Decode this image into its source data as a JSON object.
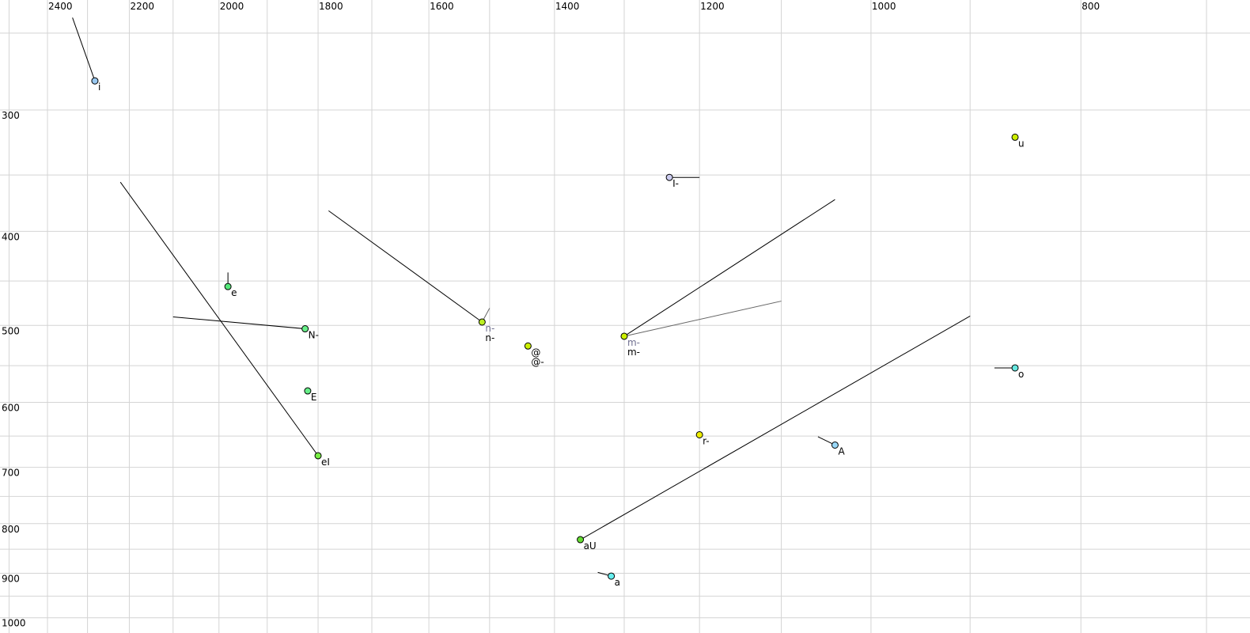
{
  "chart_data": {
    "type": "scatter",
    "title": "",
    "xlabel": "",
    "ylabel": "",
    "x_axis": {
      "quantity": "F2",
      "scale": "log",
      "reversed": true,
      "range": [
        2520,
        650
      ],
      "ticks": [
        2400,
        2200,
        2000,
        1800,
        1600,
        1400,
        1200,
        1000,
        800
      ],
      "grid_step": 100
    },
    "y_axis": {
      "quantity": "F1",
      "scale": "log",
      "reversed": false,
      "range": [
        230,
        1020
      ],
      "ticks": [
        300,
        400,
        500,
        600,
        700,
        800,
        900,
        1000
      ],
      "grid_step": 50
    },
    "grid": true,
    "points": [
      {
        "labels": [
          {
            "text": "i",
            "color": "#000000"
          }
        ],
        "f2": 2282,
        "f1": 280,
        "color": "#99c8f0",
        "trajectory": [
          {
            "f2": 2337,
            "f1": 241,
            "color": "#000000"
          }
        ]
      },
      {
        "labels": [
          {
            "text": "e",
            "color": "#000000"
          }
        ],
        "f2": 1981,
        "f1": 456,
        "color": "#55e87a",
        "trajectory": [
          {
            "f2": 1981,
            "f1": 441,
            "color": "#000000"
          }
        ]
      },
      {
        "labels": [
          {
            "text": "N-",
            "color": "#000000"
          }
        ],
        "f2": 1825,
        "f1": 504,
        "color": "#66ee88",
        "trajectory": [
          {
            "f2": 2100,
            "f1": 490,
            "color": "#000000"
          }
        ]
      },
      {
        "labels": [
          {
            "text": "E",
            "color": "#000000"
          }
        ],
        "f2": 1820,
        "f1": 584,
        "color": "#66ee88",
        "trajectory": []
      },
      {
        "labels": [
          {
            "text": "eI",
            "color": "#000000"
          }
        ],
        "f2": 1800,
        "f1": 681,
        "color": "#77ee44",
        "trajectory": [
          {
            "f2": 2221,
            "f1": 356,
            "color": "#000000"
          }
        ]
      },
      {
        "labels": [
          {
            "text": "n-",
            "color": "#707090"
          },
          {
            "text": "n-",
            "color": "#000000"
          }
        ],
        "f2": 1512,
        "f1": 496,
        "color": "#bbee22",
        "trajectory": [
          {
            "f2": 1780,
            "f1": 381,
            "color": "#000000"
          },
          {
            "f2": 1500,
            "f1": 480,
            "color": "#666666"
          }
        ]
      },
      {
        "labels": [
          {
            "text": "@",
            "color": "#000000"
          },
          {
            "text": "@-",
            "color": "#000000"
          }
        ],
        "f2": 1440,
        "f1": 525,
        "color": "#ccf000",
        "trajectory": []
      },
      {
        "labels": [
          {
            "text": "m-",
            "color": "#707090"
          },
          {
            "text": "m-",
            "color": "#000000"
          }
        ],
        "f2": 1300,
        "f1": 513,
        "color": "#ccf000",
        "trajectory": [
          {
            "f2": 1039,
            "f1": 371,
            "color": "#000000"
          },
          {
            "f2": 1100,
            "f1": 472,
            "color": "#666666"
          }
        ]
      },
      {
        "labels": [
          {
            "text": "I-",
            "color": "#000000"
          }
        ],
        "f2": 1239,
        "f1": 352,
        "color": "#ccccf0",
        "trajectory": [
          {
            "f2": 1200,
            "f1": 352,
            "color": "#000000"
          }
        ]
      },
      {
        "labels": [
          {
            "text": "u",
            "color": "#000000"
          }
        ],
        "f2": 858,
        "f1": 320,
        "color": "#ccee00",
        "trajectory": []
      },
      {
        "labels": [
          {
            "text": "o",
            "color": "#000000"
          }
        ],
        "f2": 858,
        "f1": 553,
        "color": "#66e8e0",
        "trajectory": [
          {
            "f2": 877,
            "f1": 553,
            "color": "#000000"
          }
        ]
      },
      {
        "labels": [
          {
            "text": "r-",
            "color": "#000000"
          }
        ],
        "f2": 1200,
        "f1": 648,
        "color": "#eeee00",
        "trajectory": [
          {
            "f2": 1200,
            "f1": 643,
            "color": "#000000"
          }
        ]
      },
      {
        "labels": [
          {
            "text": "A",
            "color": "#000000"
          }
        ],
        "f2": 1039,
        "f1": 664,
        "color": "#99d8f8",
        "trajectory": [
          {
            "f2": 1058,
            "f1": 651,
            "color": "#000000"
          }
        ]
      },
      {
        "labels": [
          {
            "text": "aU",
            "color": "#000000"
          }
        ],
        "f2": 1362,
        "f1": 831,
        "color": "#66dd33",
        "trajectory": [
          {
            "f2": 900,
            "f1": 489,
            "color": "#000000"
          }
        ]
      },
      {
        "labels": [
          {
            "text": "a",
            "color": "#000000"
          }
        ],
        "f2": 1318,
        "f1": 906,
        "color": "#66eeee",
        "trajectory": [
          {
            "f2": 1337,
            "f1": 898,
            "color": "#000000"
          }
        ]
      }
    ]
  }
}
